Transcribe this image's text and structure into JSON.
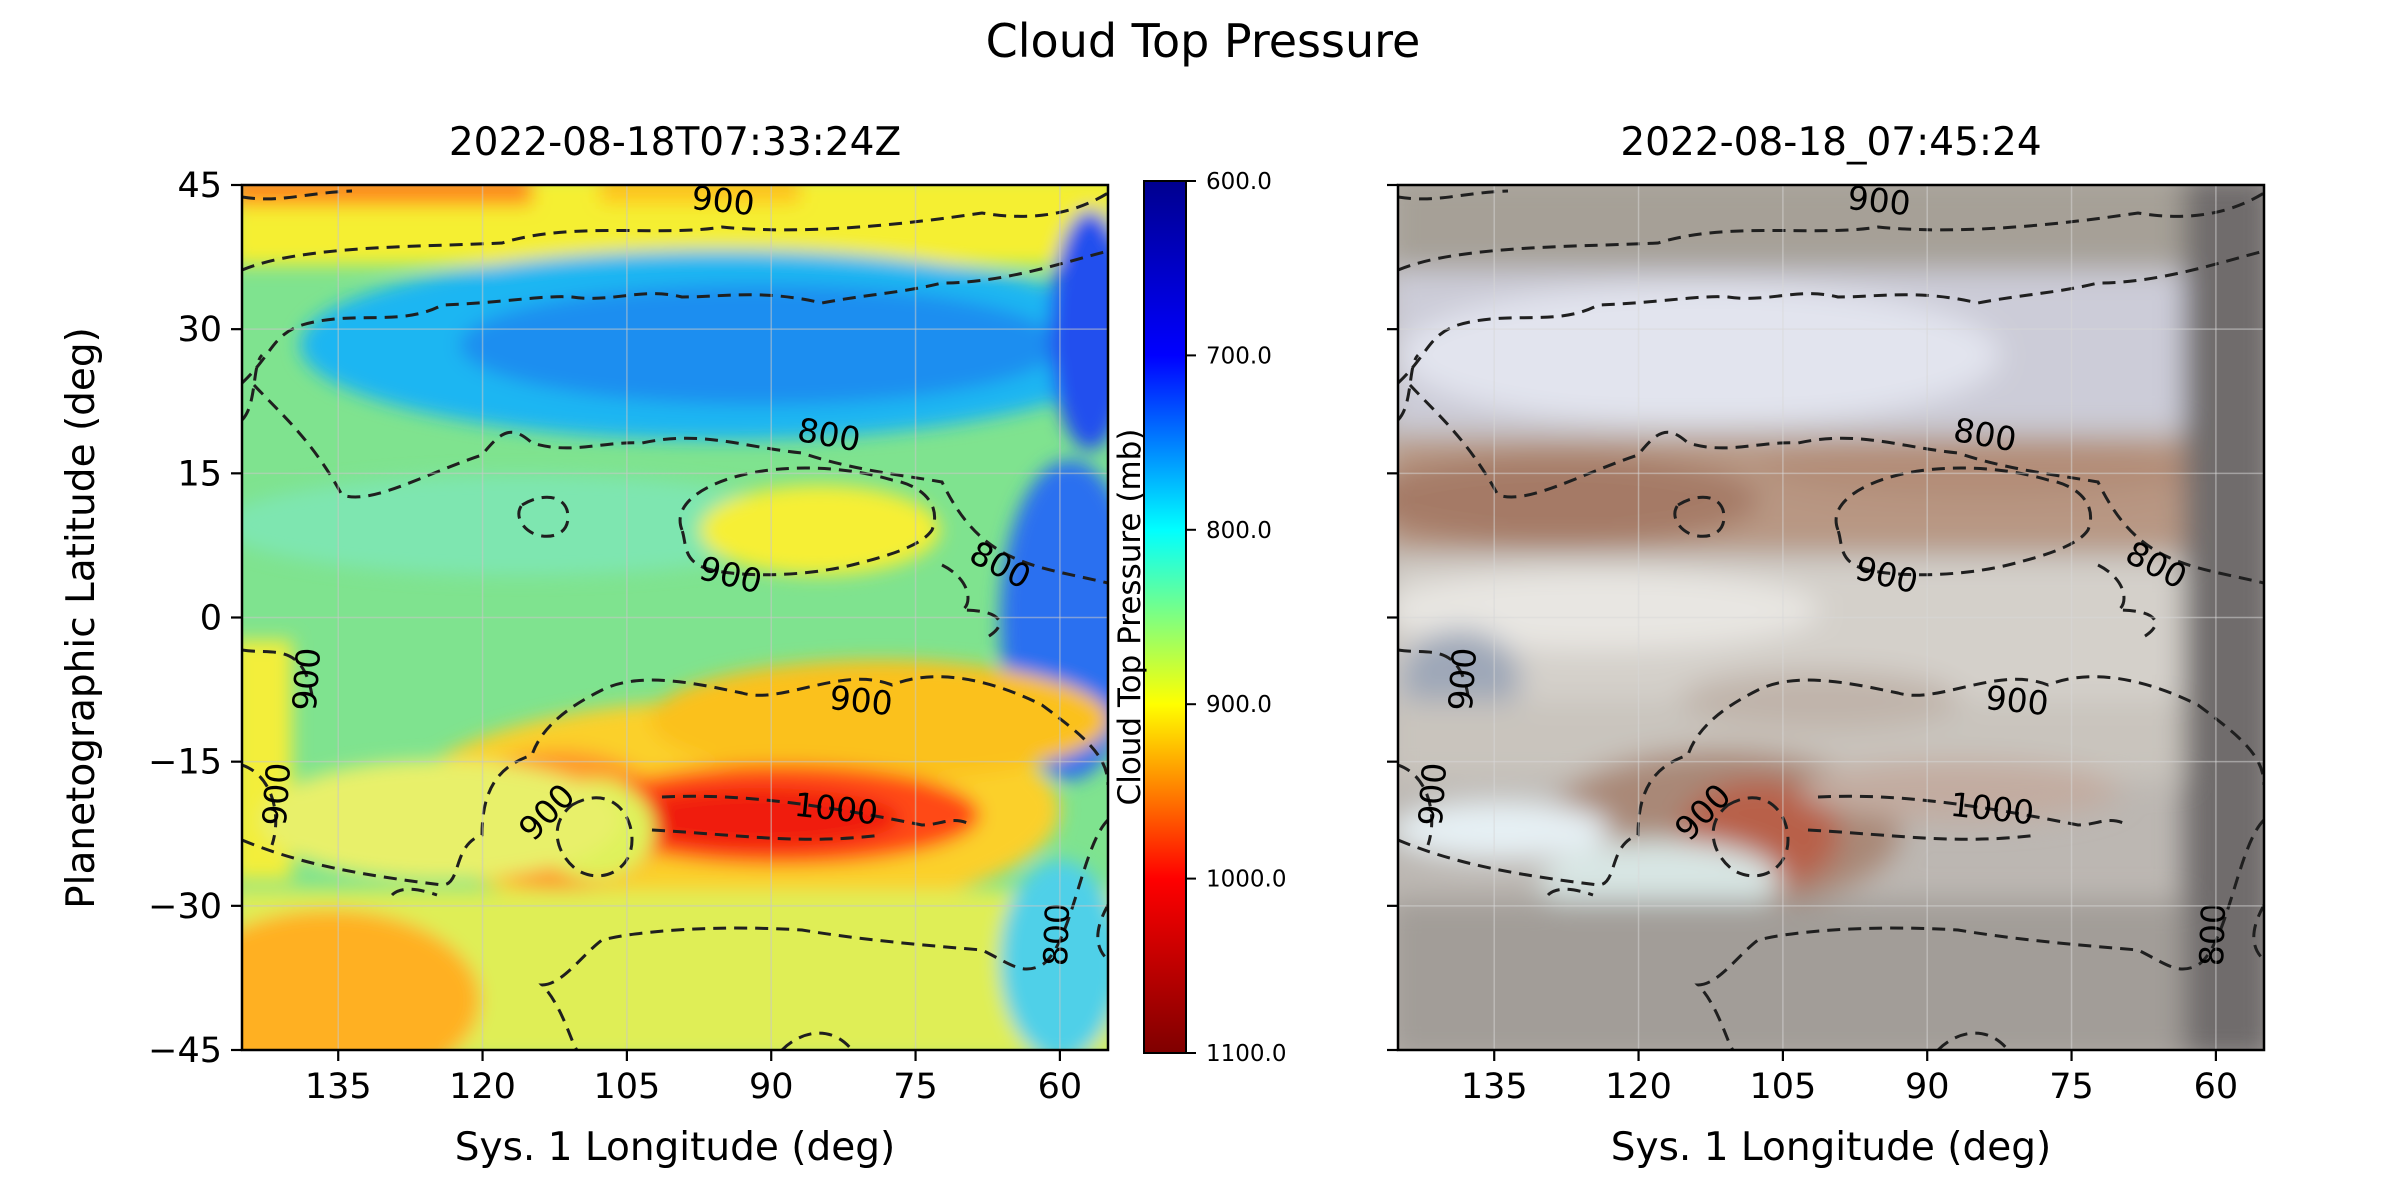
{
  "figure": {
    "suptitle": "Cloud Top Pressure"
  },
  "colors": {
    "contour": "#1f1f1f",
    "colormap": [
      "#7f0000",
      "#ff0000",
      "#ffff00",
      "#00ffff",
      "#0000ff",
      "#00008f"
    ]
  },
  "chart_data": [
    {
      "type": "heatmap",
      "title": "2022-08-18T07:33:24Z",
      "xlabel": "Sys. 1 Longitude (deg)",
      "ylabel": "Planetographic Latitude (deg)",
      "xlim": [
        145,
        55
      ],
      "ylim": [
        -45,
        45
      ],
      "x_ticks": [
        "135",
        "120",
        "105",
        "90",
        "75",
        "60"
      ],
      "y_ticks": [
        "45",
        "30",
        "15",
        "0",
        "−15",
        "−30",
        "−45"
      ],
      "colorbar": {
        "label": "Cloud Top Pressure (mb)",
        "range": [
          600,
          1100
        ],
        "reversed": true,
        "ticks": [
          "600.0",
          "700.0",
          "800.0",
          "900.0",
          "1000.0",
          "1100.0"
        ]
      },
      "grid": true,
      "contour_levels": [
        "800",
        "900",
        "1000"
      ],
      "contour_labels": [
        "900",
        "800",
        "800",
        "900",
        "900",
        "900",
        "900",
        "900",
        "1000",
        "800"
      ]
    },
    {
      "type": "image",
      "title": "2022-08-18_07:45:24",
      "xlabel": "Sys. 1 Longitude (deg)",
      "xlim": [
        145,
        55
      ],
      "ylim": [
        -45,
        45
      ],
      "x_ticks": [
        "135",
        "120",
        "105",
        "90",
        "75",
        "60"
      ],
      "grid": true,
      "contour_labels": [
        "900",
        "800",
        "800",
        "900",
        "900",
        "900",
        "900",
        "900",
        "1000",
        "800"
      ]
    }
  ]
}
